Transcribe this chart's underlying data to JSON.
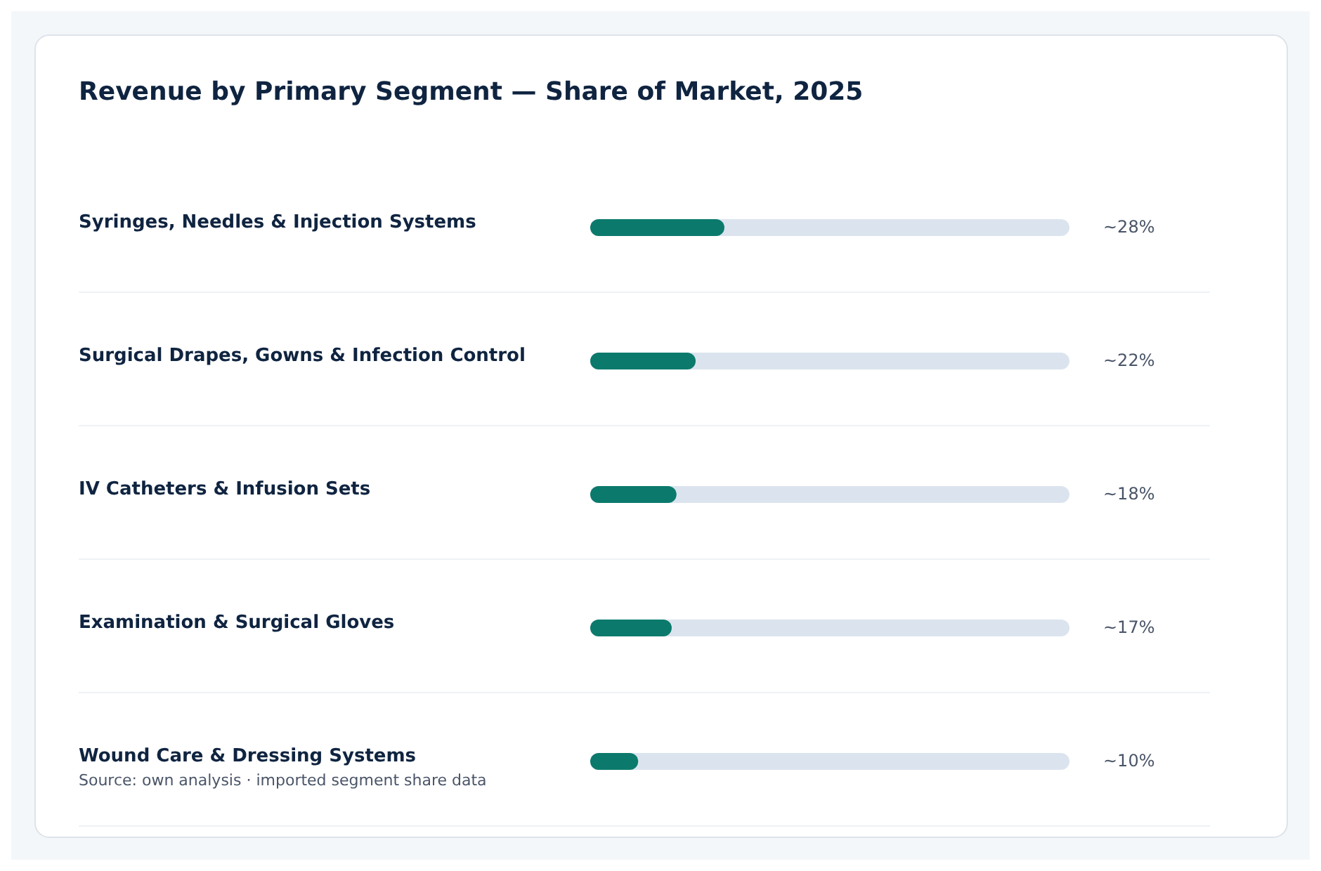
{
  "chart_data": {
    "type": "bar",
    "orientation": "horizontal",
    "title": "Revenue by Primary Segment — Share of Market, 2025",
    "categories": [
      "Syringes, Needles & Injection Systems",
      "Surgical Drapes, Gowns & Infection Control",
      "IV Catheters & Infusion Sets",
      "Examination & Surgical Gloves",
      "Wound Care & Dressing Systems"
    ],
    "values": [
      28,
      22,
      18,
      17,
      10
    ],
    "value_labels": [
      "~28%",
      "~22%",
      "~18%",
      "~17%",
      "~10%"
    ],
    "color": "#0b7a6c",
    "xlim": [
      0,
      100
    ],
    "annotations": [
      "Source: own analysis · imported segment share data"
    ]
  }
}
